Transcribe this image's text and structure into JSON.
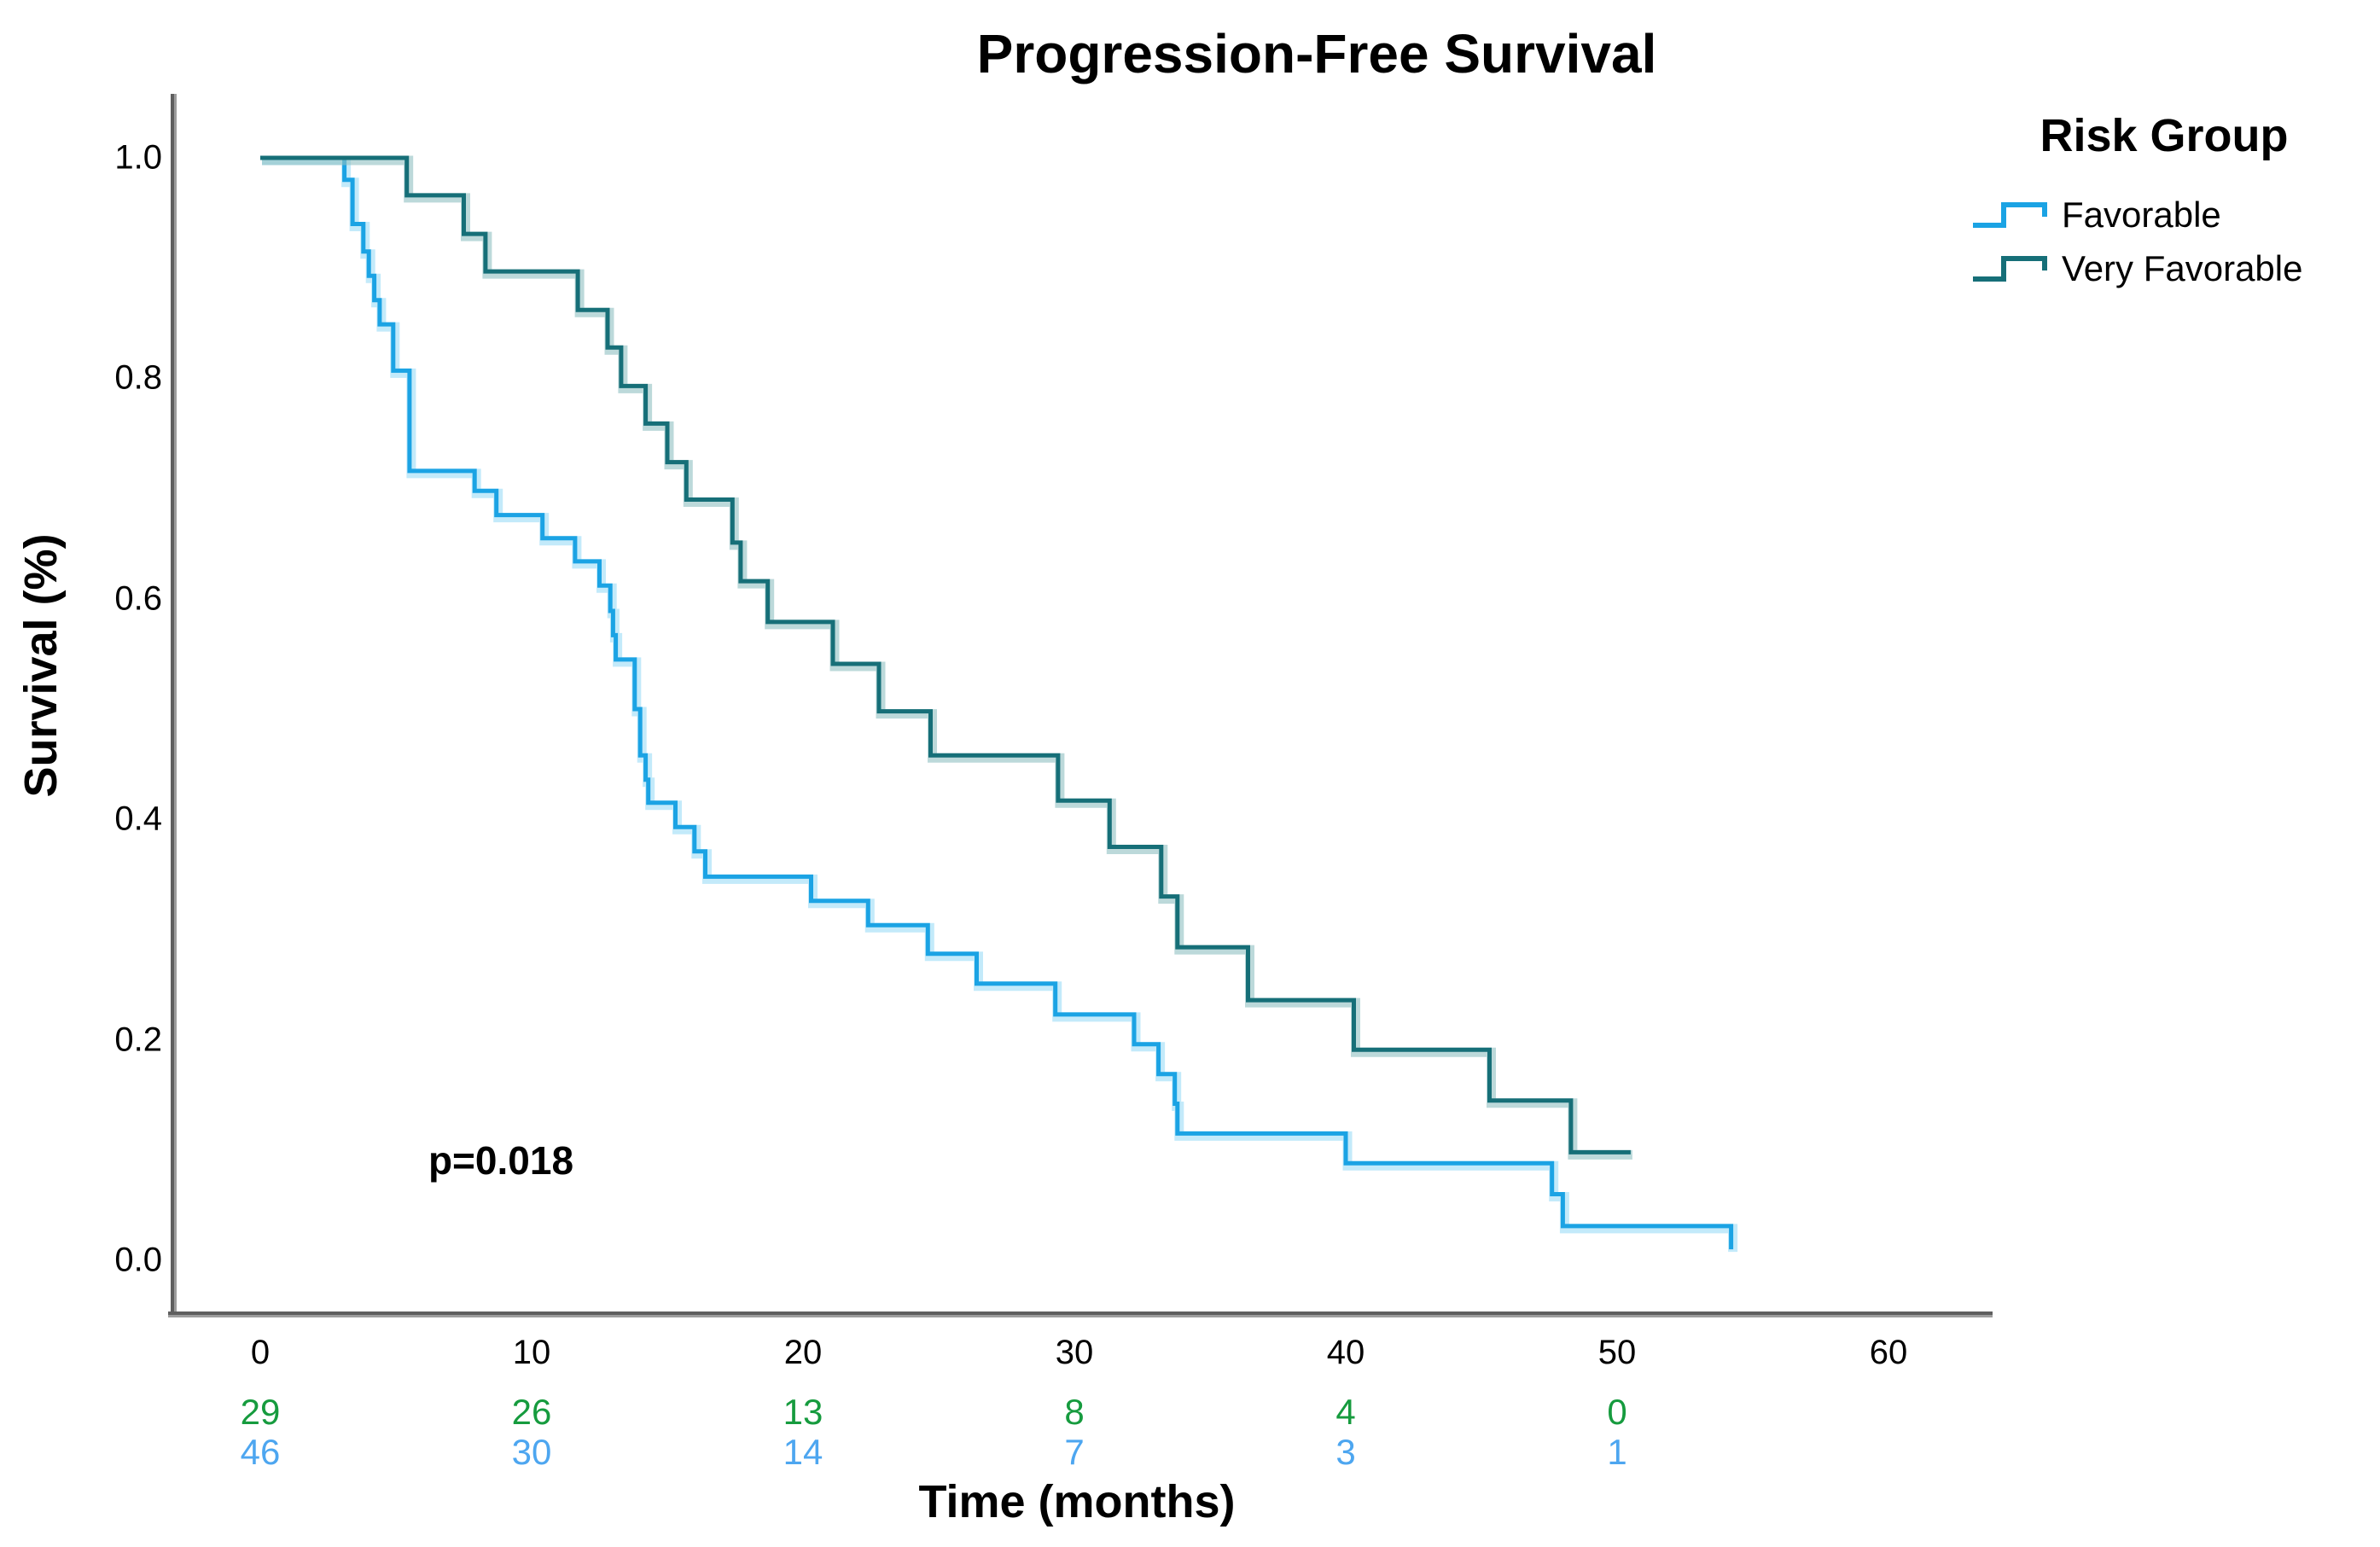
{
  "title": "Progression-Free Survival",
  "p_value_label": "p=0.018",
  "x_axis": {
    "label": "Time (months)",
    "ticks": [
      "0",
      "10",
      "20",
      "30",
      "40",
      "50",
      "60"
    ]
  },
  "y_axis": {
    "label": "Survival (%)",
    "ticks": [
      "1.0",
      "0.8",
      "0.6",
      "0.4",
      "0.2",
      "0.0"
    ]
  },
  "legend": {
    "title": "Risk Group",
    "items": [
      {
        "label": "Favorable",
        "color": "#1BA3E4"
      },
      {
        "label": "Very Favorable",
        "color": "#166F78"
      }
    ]
  },
  "at_risk_table": {
    "rows": [
      {
        "group": "Very Favorable",
        "color": "#169B3E",
        "values": [
          "29",
          "26",
          "13",
          "8",
          "4",
          "0"
        ]
      },
      {
        "group": "Favorable",
        "color": "#4DA6F0",
        "values": [
          "46",
          "30",
          "14",
          "7",
          "3",
          "1"
        ]
      }
    ]
  },
  "chart_data": {
    "type": "line",
    "subtype": "kaplan-meier-step",
    "title": "Progression-Free Survival",
    "xlabel": "Time (months)",
    "ylabel": "Survival (%)",
    "xlim": [
      0,
      60
    ],
    "ylim": [
      0.0,
      1.0
    ],
    "x_ticks": [
      0,
      10,
      20,
      30,
      40,
      50,
      60
    ],
    "y_ticks": [
      1.0,
      0.8,
      0.6,
      0.4,
      0.2,
      0.0
    ],
    "grid": false,
    "legend_position": "top-right",
    "annotation": "p=0.018",
    "series": [
      {
        "name": "Favorable",
        "color": "#1BA3E4",
        "halo_color": "#9BDCF6",
        "end_time": 54.2,
        "steps": [
          [
            0,
            1.0
          ],
          [
            3.1,
            0.98
          ],
          [
            3.4,
            0.94
          ],
          [
            3.8,
            0.915
          ],
          [
            4.0,
            0.893
          ],
          [
            4.2,
            0.871
          ],
          [
            4.4,
            0.849
          ],
          [
            4.9,
            0.807
          ],
          [
            5.5,
            0.716
          ],
          [
            7.9,
            0.698
          ],
          [
            8.7,
            0.676
          ],
          [
            10.4,
            0.655
          ],
          [
            11.6,
            0.634
          ],
          [
            12.5,
            0.612
          ],
          [
            12.9,
            0.589
          ],
          [
            13.0,
            0.567
          ],
          [
            13.1,
            0.545
          ],
          [
            13.8,
            0.5
          ],
          [
            14.0,
            0.458
          ],
          [
            14.2,
            0.436
          ],
          [
            14.3,
            0.415
          ],
          [
            15.3,
            0.393
          ],
          [
            16.0,
            0.371
          ],
          [
            16.4,
            0.348
          ],
          [
            20.3,
            0.326
          ],
          [
            22.4,
            0.304
          ],
          [
            24.6,
            0.278
          ],
          [
            26.4,
            0.251
          ],
          [
            29.3,
            0.223
          ],
          [
            32.2,
            0.196
          ],
          [
            33.1,
            0.169
          ],
          [
            33.7,
            0.142
          ],
          [
            33.8,
            0.115
          ],
          [
            40.0,
            0.088
          ],
          [
            47.6,
            0.06
          ],
          [
            48.0,
            0.031
          ],
          [
            54.2,
            0.01
          ]
        ]
      },
      {
        "name": "Very Favorable",
        "color": "#166F78",
        "halo_color": "#8FC0C2",
        "end_time": 50.5,
        "steps": [
          [
            0,
            1.0
          ],
          [
            5.4,
            0.966
          ],
          [
            7.5,
            0.931
          ],
          [
            8.3,
            0.897
          ],
          [
            11.7,
            0.862
          ],
          [
            12.8,
            0.828
          ],
          [
            13.3,
            0.793
          ],
          [
            14.2,
            0.759
          ],
          [
            15.0,
            0.724
          ],
          [
            15.7,
            0.69
          ],
          [
            17.4,
            0.651
          ],
          [
            17.7,
            0.616
          ],
          [
            18.7,
            0.579
          ],
          [
            21.1,
            0.541
          ],
          [
            22.8,
            0.498
          ],
          [
            24.7,
            0.458
          ],
          [
            29.4,
            0.417
          ],
          [
            31.3,
            0.375
          ],
          [
            33.2,
            0.33
          ],
          [
            33.8,
            0.284
          ],
          [
            36.4,
            0.236
          ],
          [
            40.3,
            0.191
          ],
          [
            45.3,
            0.145
          ],
          [
            48.3,
            0.098
          ]
        ]
      }
    ],
    "numbers_at_risk": {
      "times": [
        0,
        10,
        20,
        30,
        40,
        50
      ],
      "Very Favorable": [
        29,
        26,
        13,
        8,
        4,
        0
      ],
      "Favorable": [
        46,
        30,
        14,
        7,
        3,
        1
      ]
    }
  }
}
